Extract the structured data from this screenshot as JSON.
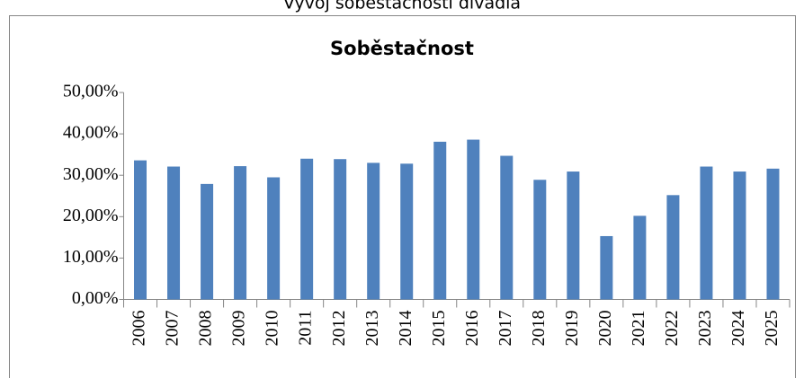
{
  "page_heading": "Vývoj soběstačnosti divadla",
  "chart_data": {
    "type": "bar",
    "title": "Soběstačnost",
    "categories": [
      "2006",
      "2007",
      "2008",
      "2009",
      "2010",
      "2011",
      "2012",
      "2013",
      "2014",
      "2015",
      "2016",
      "2017",
      "2018",
      "2019",
      "2020",
      "2021",
      "2022",
      "2023",
      "2024",
      "2025"
    ],
    "values": [
      33.6,
      32.1,
      27.9,
      32.2,
      29.5,
      34.0,
      33.9,
      33.0,
      32.8,
      38.1,
      38.6,
      34.7,
      28.9,
      30.9,
      15.3,
      20.2,
      25.2,
      32.1,
      30.9,
      31.6
    ],
    "color": "#4f81bd",
    "ylim": [
      0,
      50
    ],
    "yticks": [
      {
        "value": 0,
        "label": "0,00%"
      },
      {
        "value": 10,
        "label": "10,00%"
      },
      {
        "value": 20,
        "label": "20,00%"
      },
      {
        "value": 30,
        "label": "30,00%"
      },
      {
        "value": 40,
        "label": "40,00%"
      },
      {
        "value": 50,
        "label": "50,00%"
      }
    ],
    "grid": false
  }
}
